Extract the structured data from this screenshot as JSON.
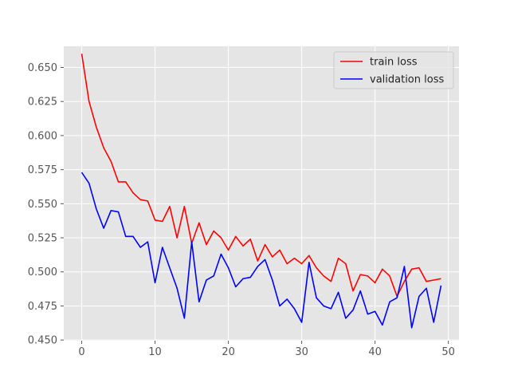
{
  "chart_data": {
    "type": "line",
    "title": "",
    "xlabel": "",
    "ylabel": "",
    "xlim": [
      -2.45,
      51.45
    ],
    "ylim": [
      0.4495,
      0.6655
    ],
    "xticks": [
      0,
      10,
      20,
      30,
      40,
      50
    ],
    "yticks": [
      0.45,
      0.475,
      0.5,
      0.525,
      0.55,
      0.575,
      0.6,
      0.625,
      0.65
    ],
    "grid": true,
    "legend_position": "top-right",
    "x": [
      0,
      1,
      2,
      3,
      4,
      5,
      6,
      7,
      8,
      9,
      10,
      11,
      12,
      13,
      14,
      15,
      16,
      17,
      18,
      19,
      20,
      21,
      22,
      23,
      24,
      25,
      26,
      27,
      28,
      29,
      30,
      31,
      32,
      33,
      34,
      35,
      36,
      37,
      38,
      39,
      40,
      41,
      42,
      43,
      44,
      45,
      46,
      47,
      48,
      49
    ],
    "series": [
      {
        "name": "train loss",
        "color": "#ff0000",
        "values": [
          0.66,
          0.625,
          0.606,
          0.591,
          0.581,
          0.566,
          0.566,
          0.558,
          0.553,
          0.552,
          0.538,
          0.537,
          0.548,
          0.525,
          0.548,
          0.521,
          0.536,
          0.52,
          0.53,
          0.525,
          0.516,
          0.526,
          0.519,
          0.524,
          0.508,
          0.52,
          0.511,
          0.516,
          0.506,
          0.51,
          0.506,
          0.512,
          0.503,
          0.497,
          0.493,
          0.51,
          0.506,
          0.486,
          0.498,
          0.497,
          0.492,
          0.502,
          0.497,
          0.482,
          0.493,
          0.502,
          0.503,
          0.493,
          0.494,
          0.495
        ]
      },
      {
        "name": "validation loss",
        "color": "#0000ff",
        "values": [
          0.573,
          0.565,
          0.546,
          0.532,
          0.545,
          0.544,
          0.526,
          0.526,
          0.518,
          0.522,
          0.492,
          0.518,
          0.503,
          0.488,
          0.466,
          0.522,
          0.478,
          0.494,
          0.497,
          0.513,
          0.503,
          0.489,
          0.495,
          0.496,
          0.504,
          0.509,
          0.494,
          0.475,
          0.48,
          0.473,
          0.463,
          0.507,
          0.481,
          0.475,
          0.473,
          0.485,
          0.466,
          0.472,
          0.486,
          0.469,
          0.471,
          0.461,
          0.478,
          0.481,
          0.504,
          0.459,
          0.482,
          0.488,
          0.463,
          0.49
        ]
      }
    ]
  }
}
